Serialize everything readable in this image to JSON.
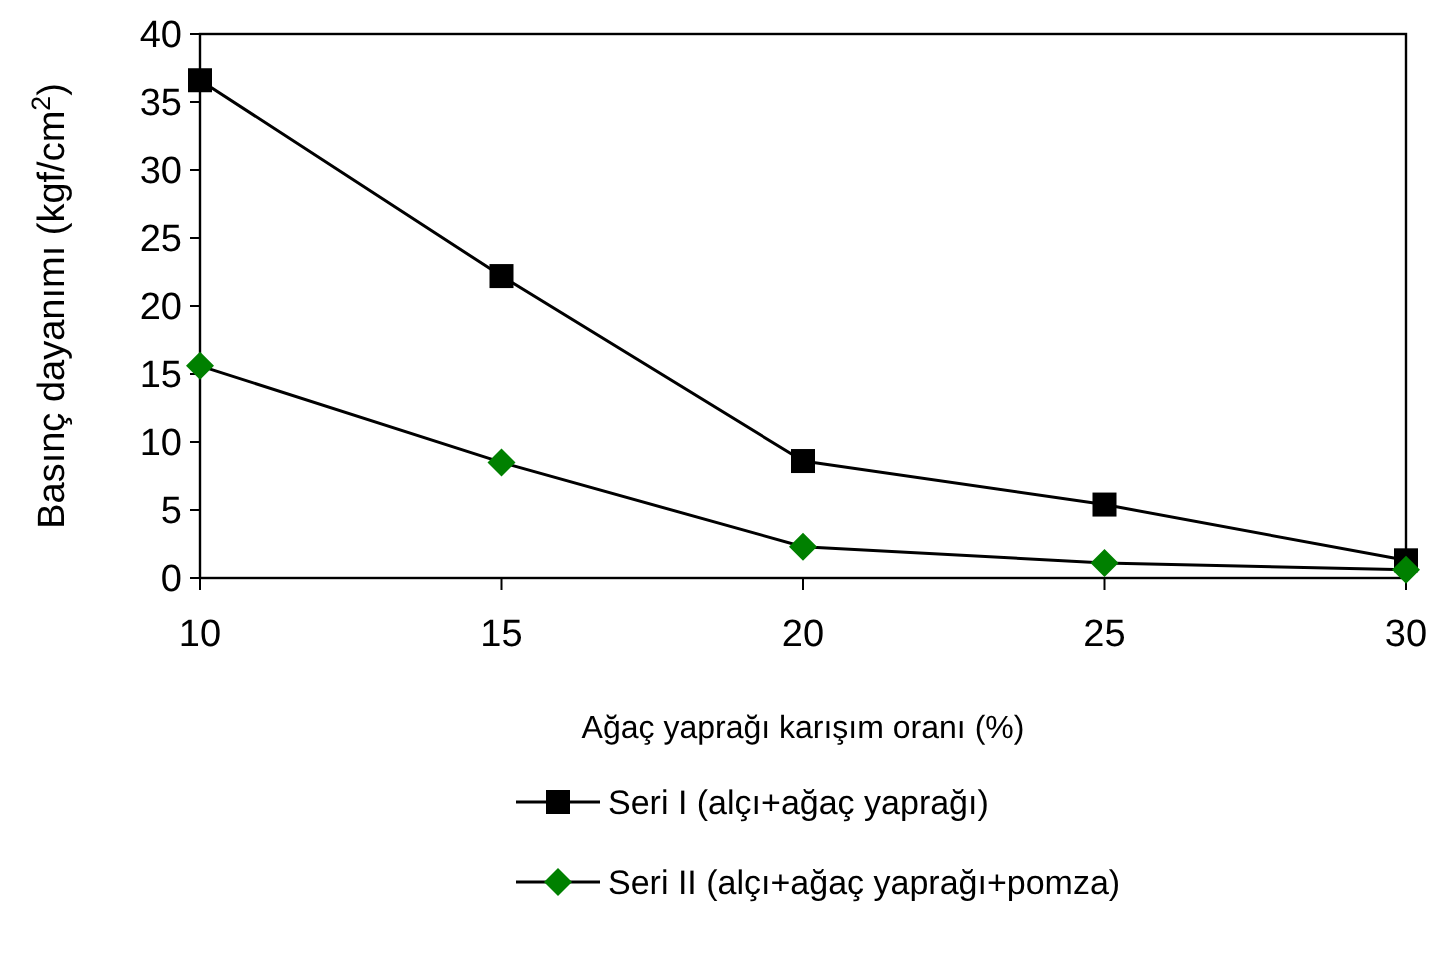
{
  "chart_data": {
    "type": "line",
    "xlabel": "Ağaç yaprağı karışım oranı (%)",
    "ylabel": "Basınç dayanımı (kgf/cm$^{2}$)",
    "x": [
      10,
      15,
      20,
      25,
      30
    ],
    "xlim": [
      10,
      30
    ],
    "xticks": [
      10,
      15,
      20,
      25,
      30
    ],
    "ylim": [
      0,
      40
    ],
    "yticks": [
      0,
      5,
      10,
      15,
      20,
      25,
      30,
      35,
      40
    ],
    "grid": false,
    "legend": "bottom",
    "line_style": "solid",
    "series": [
      {
        "name": "Seri I (alçı+ağaç yaprağı)",
        "color": "#000000",
        "marker": "square",
        "values": [
          36.6,
          22.2,
          8.6,
          5.4,
          1.3
        ]
      },
      {
        "name": "Seri II (alçı+ağaç yaprağı+pomza)",
        "color": "#008000",
        "marker": "diamond",
        "values": [
          15.6,
          8.5,
          2.3,
          1.1,
          0.6
        ]
      }
    ]
  }
}
